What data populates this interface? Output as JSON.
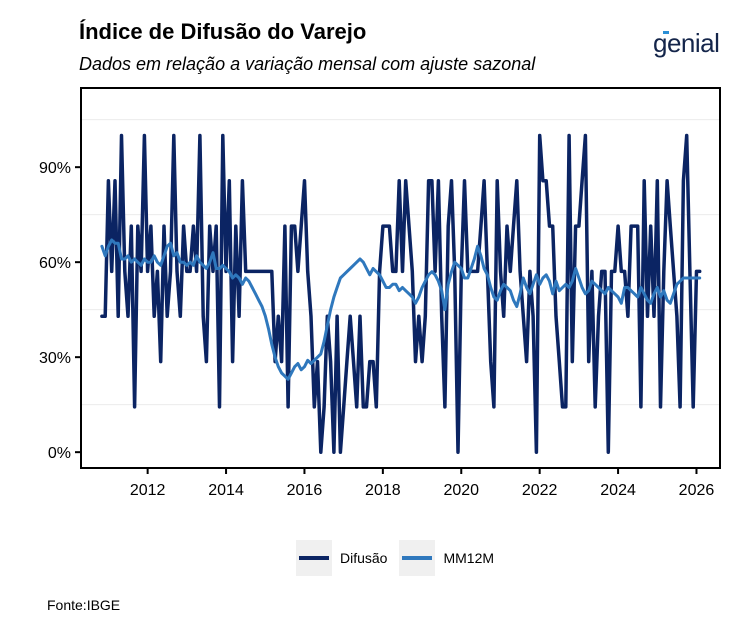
{
  "header": {
    "title": "Índice de Difusão do Varejo",
    "subtitle": "Dados em relação a variação mensal com ajuste sazonal",
    "logo_text": "genial"
  },
  "footer": {
    "source": "Fonte:IBGE"
  },
  "legend": {
    "items": [
      {
        "label": "Difusão",
        "color": "#0b2463"
      },
      {
        "label": "MM12M",
        "color": "#2f78bd"
      }
    ]
  },
  "chart_data": {
    "type": "line",
    "title": "Índice de Difusão do Varejo",
    "subtitle": "Dados em relação a variação mensal com ajuste sazonal",
    "xlabel": "",
    "ylabel": "",
    "x_start": "2010-11",
    "frequency": "monthly",
    "xlim": [
      2010.3,
      2026.6
    ],
    "ylim": [
      -5,
      115
    ],
    "x_ticks": [
      2012,
      2014,
      2016,
      2018,
      2020,
      2022,
      2024,
      2026
    ],
    "x_tick_labels": [
      "2012",
      "2014",
      "2016",
      "2018",
      "2020",
      "2022",
      "2024",
      "2026"
    ],
    "y_ticks": [
      0,
      30,
      60,
      90
    ],
    "y_tick_labels": [
      "0%",
      "30%",
      "60%",
      "90%"
    ],
    "grid": "minor horizontal",
    "legend_position": "bottom",
    "source": "Fonte:IBGE",
    "series": [
      {
        "name": "Difusão",
        "color": "#0b2463",
        "values": [
          42.9,
          42.9,
          85.7,
          57.1,
          85.7,
          42.9,
          100,
          57.1,
          42.9,
          71.4,
          14.3,
          71.4,
          57.1,
          100,
          57.1,
          71.4,
          42.9,
          57.1,
          28.6,
          71.4,
          42.9,
          57.1,
          100,
          57.1,
          42.9,
          71.4,
          57.1,
          57.1,
          71.4,
          57.1,
          100,
          42.9,
          28.6,
          71.4,
          57.1,
          71.4,
          14.3,
          100,
          57.1,
          85.7,
          28.6,
          71.4,
          42.9,
          85.7,
          57.1,
          57.1,
          57.1,
          57.1,
          57.1,
          57.1,
          57.1,
          57.1,
          57.1,
          28.6,
          42.9,
          28.6,
          71.4,
          14.3,
          71.4,
          71.4,
          57.1,
          71.4,
          85.7,
          57.1,
          42.9,
          14.3,
          28.6,
          0,
          14.3,
          42.9,
          28.6,
          0,
          42.9,
          0,
          14.3,
          28.6,
          42.9,
          28.6,
          14.3,
          42.9,
          14.3,
          14.3,
          28.6,
          28.6,
          14.3,
          57.1,
          71.4,
          71.4,
          71.4,
          57.1,
          57.1,
          85.7,
          57.1,
          85.7,
          71.4,
          57.1,
          28.6,
          42.9,
          28.6,
          42.9,
          85.7,
          85.7,
          57.1,
          85.7,
          42.9,
          14.3,
          71.4,
          85.7,
          57.1,
          0,
          57.1,
          85.7,
          57.1,
          57.1,
          57.1,
          57.1,
          71.4,
          85.7,
          57.1,
          28.6,
          14.3,
          85.7,
          57.1,
          42.9,
          71.4,
          57.1,
          71.4,
          85.7,
          57.1,
          42.9,
          28.6,
          57.1,
          42.9,
          0,
          100,
          85.7,
          85.7,
          71.4,
          71.4,
          42.9,
          28.6,
          14.3,
          14.3,
          100,
          28.6,
          71.4,
          71.4,
          85.7,
          100,
          28.6,
          57.1,
          14.3,
          42.9,
          57.1,
          57.1,
          0,
          57.1,
          57.1,
          71.4,
          57.1,
          57.1,
          42.9,
          71.4,
          71.4,
          71.4,
          14.3,
          85.7,
          42.9,
          71.4,
          42.9,
          85.7,
          14.3,
          57.1,
          85.7,
          71.4,
          57.1,
          42.9,
          14.3,
          85.7,
          100,
          57.1,
          14.3,
          57.1,
          57.1
        ]
      },
      {
        "name": "MM12M",
        "color": "#2f78bd",
        "values": [
          65,
          62,
          65,
          67,
          66,
          66,
          61,
          61,
          62,
          60,
          61,
          60,
          59,
          61,
          60,
          60,
          62,
          60,
          59,
          62,
          65,
          66,
          62,
          63,
          60,
          60,
          59,
          60,
          59,
          62,
          60,
          59,
          58,
          60,
          63,
          58,
          58,
          59,
          58,
          57,
          55,
          56,
          55,
          53,
          55,
          54,
          52,
          50,
          48,
          46,
          43,
          39,
          34,
          30,
          27,
          25,
          24,
          23,
          25,
          27,
          28,
          26,
          27,
          29,
          28,
          29,
          30,
          31,
          35,
          40,
          45,
          49,
          52,
          55,
          56,
          57,
          58,
          59,
          60,
          61,
          60,
          58,
          56,
          58,
          57,
          56,
          54,
          52,
          52,
          53,
          53,
          51,
          52,
          51,
          50,
          49,
          47,
          49,
          52,
          54,
          56,
          57,
          56,
          54,
          51,
          45,
          53,
          57,
          60,
          59,
          58,
          55,
          55,
          58,
          61,
          65,
          62,
          58,
          56,
          52,
          49,
          48,
          51,
          53,
          52,
          51,
          48,
          46,
          50,
          55,
          52,
          50,
          53,
          56,
          53,
          55,
          56,
          54,
          50,
          54,
          51,
          52,
          53,
          52,
          54,
          58,
          55,
          52,
          50,
          51,
          54,
          53,
          52,
          51,
          50,
          52,
          51,
          50,
          49,
          47,
          52,
          52,
          51,
          50,
          49,
          52,
          50,
          48,
          47,
          50,
          52,
          49,
          51,
          48,
          47,
          50,
          53,
          54,
          55,
          55,
          55,
          55,
          55,
          55
        ]
      }
    ]
  }
}
